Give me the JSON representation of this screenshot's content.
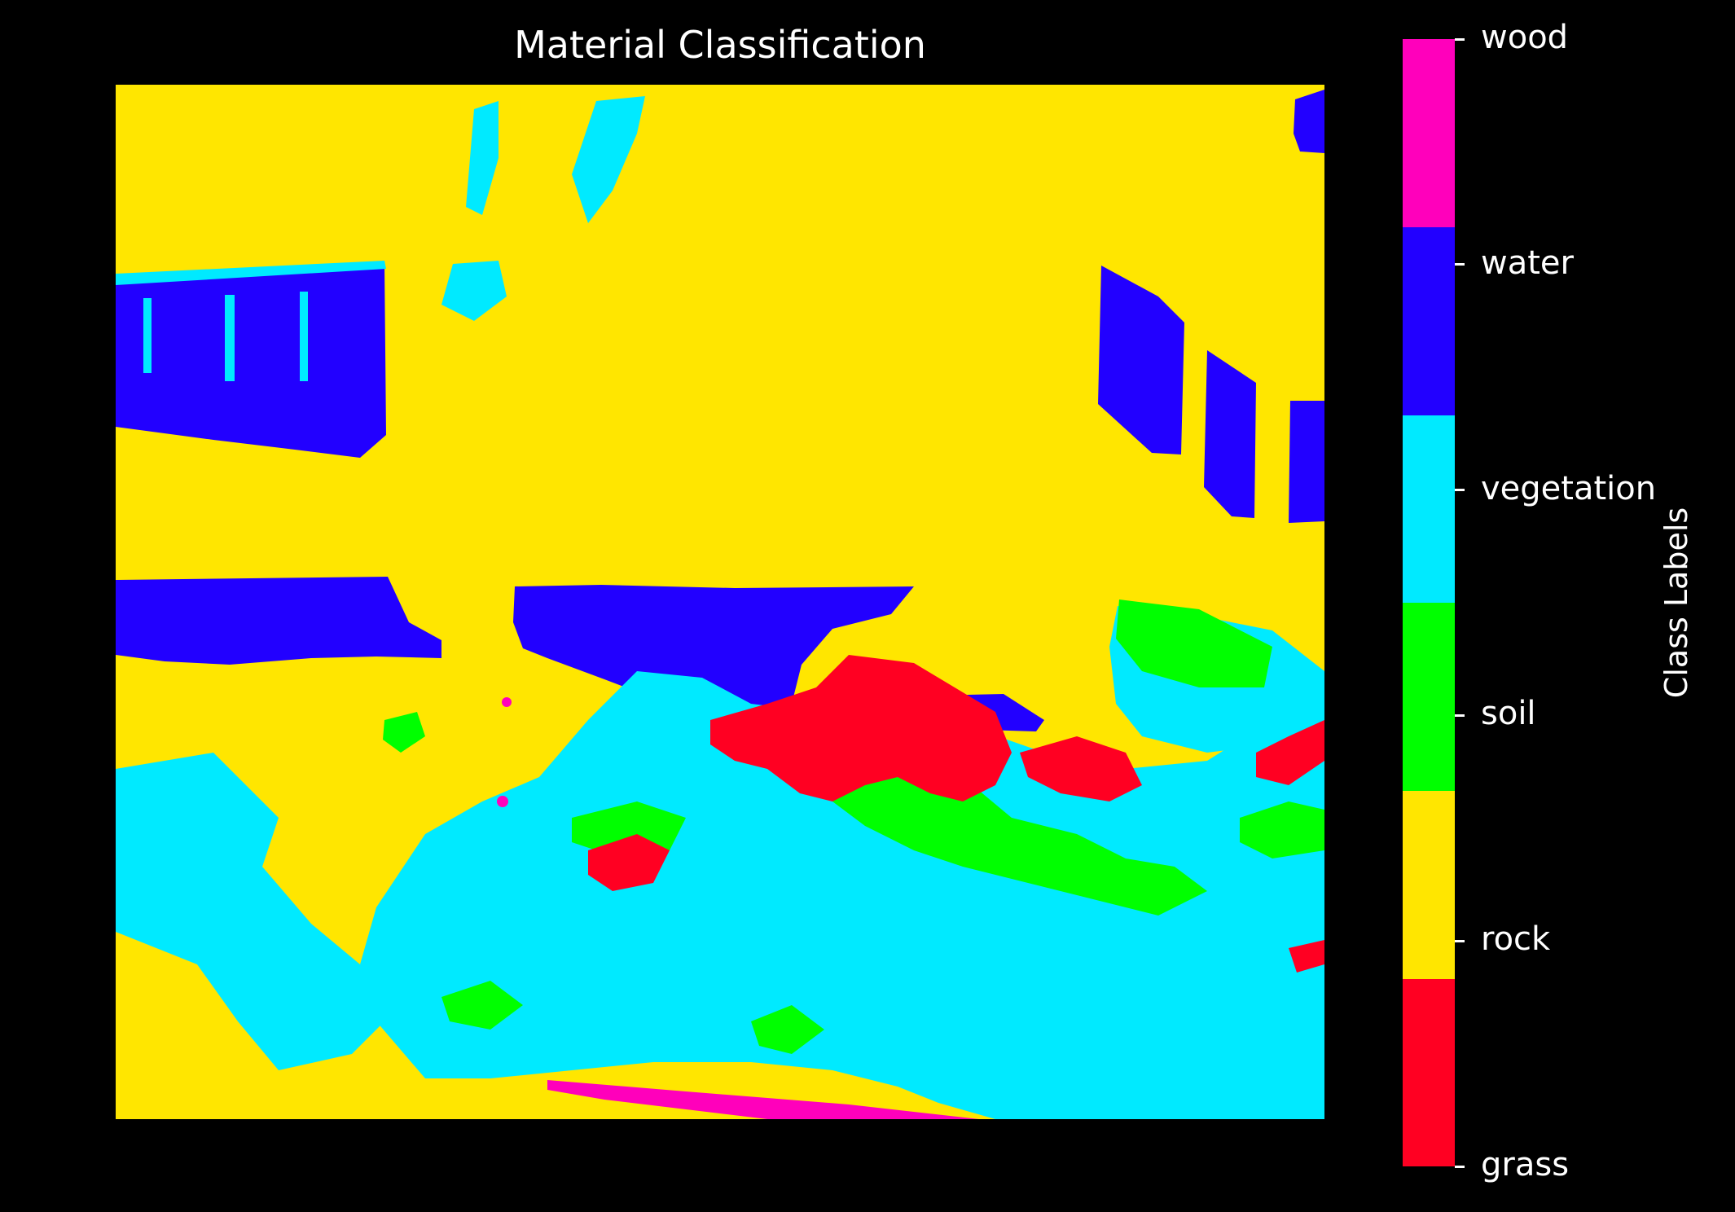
{
  "chart_data": {
    "type": "heatmap",
    "title": "Material Classification",
    "colorbar": {
      "label": "Class Labels",
      "classes": [
        {
          "name": "grass",
          "color": "#ff0022"
        },
        {
          "name": "rock",
          "color": "#ffe600"
        },
        {
          "name": "soil",
          "color": "#00ff00"
        },
        {
          "name": "vegetation",
          "color": "#00eaff"
        },
        {
          "name": "water",
          "color": "#2200ff"
        },
        {
          "name": "wood",
          "color": "#ff00bb"
        }
      ]
    },
    "axes_visible": false,
    "background": "#000000"
  }
}
